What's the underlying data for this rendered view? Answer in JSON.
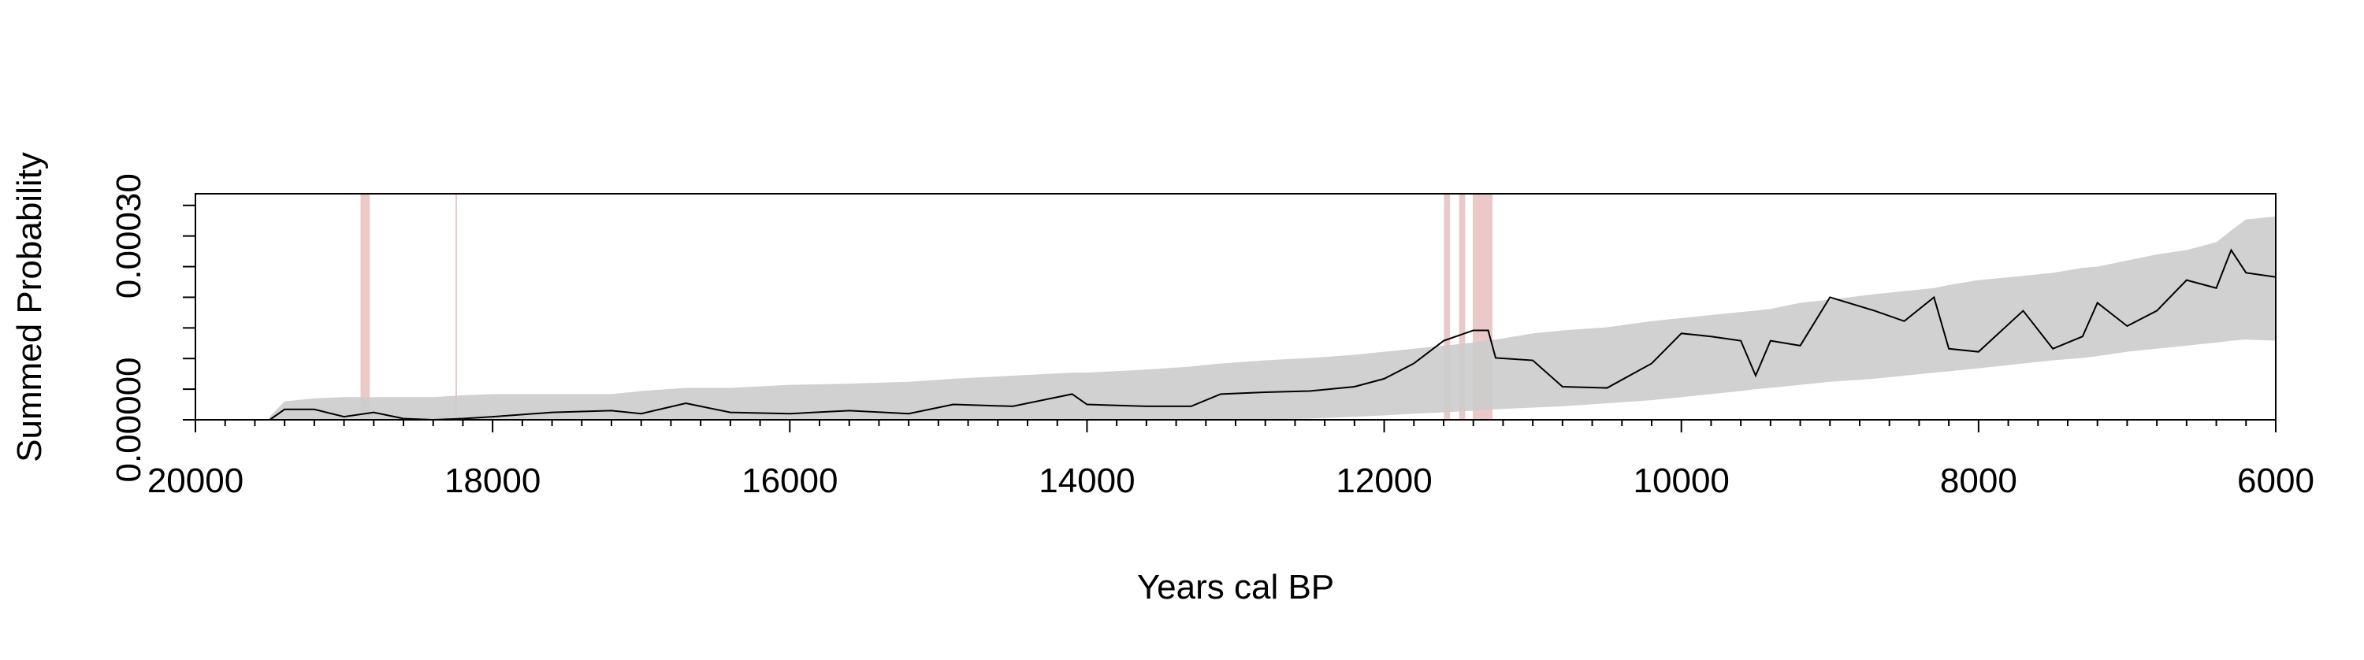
{
  "chart_data": {
    "type": "envelope-line",
    "x_label": "Years cal BP",
    "y_label": "Summed Probability",
    "xlim": [
      20000,
      6000
    ],
    "xticks": [
      20000,
      18000,
      16000,
      14000,
      12000,
      10000,
      8000,
      6000
    ],
    "xminor_ticks": [
      19800,
      19600,
      19400,
      19200,
      19000,
      18800,
      18600,
      18400,
      18200,
      17800,
      17600,
      17400,
      17200,
      17000,
      16800,
      16600,
      16400,
      16200,
      15800,
      15600,
      15400,
      15200,
      15000,
      14800,
      14600,
      14400,
      14200,
      13800,
      13600,
      13400,
      13200,
      13000,
      12800,
      12600,
      12400,
      12200,
      11800,
      11600,
      11400,
      11200,
      11000,
      10800,
      10600,
      10400,
      10200,
      9800,
      9600,
      9400,
      9200,
      9000,
      8800,
      8600,
      8400,
      8200,
      7800,
      7600,
      7400,
      7200,
      7000,
      6800,
      6600,
      6400,
      6200
    ],
    "ylim": [
      0,
      0.000369
    ],
    "yticks": [
      {
        "value": 0,
        "label": "0.00000"
      },
      {
        "value": 0.0003,
        "label": "0.00030"
      }
    ],
    "yminor_ticks": [
      5e-05,
      0.0001,
      0.00015,
      0.0002,
      0.00025,
      0.00035
    ],
    "x": [
      19500,
      19400,
      19200,
      19000,
      18800,
      18600,
      18400,
      18200,
      18000,
      17600,
      17200,
      17000,
      16700,
      16400,
      16000,
      15600,
      15200,
      14900,
      14500,
      14100,
      14000,
      13600,
      13300,
      13100,
      12800,
      12500,
      12200,
      12000,
      11800,
      11600,
      11400,
      11300,
      11250,
      11000,
      10800,
      10500,
      10200,
      10000,
      9800,
      9600,
      9500,
      9400,
      9200,
      9000,
      8700,
      8500,
      8300,
      8200,
      8000,
      7700,
      7500,
      7300,
      7200,
      7000,
      6800,
      6600,
      6400,
      6300,
      6200,
      6000
    ],
    "values": [
      0,
      1.7e-05,
      1.7e-05,
      5e-06,
      1.2e-05,
      2e-06,
      0,
      2e-06,
      5e-06,
      1.2e-05,
      1.5e-05,
      1e-05,
      2.7e-05,
      1.2e-05,
      1e-05,
      1.5e-05,
      1e-05,
      2.5e-05,
      2.2e-05,
      4.2e-05,
      2.5e-05,
      2.2e-05,
      2.2e-05,
      4.2e-05,
      4.5e-05,
      4.7e-05,
      5.4e-05,
      6.7e-05,
      9.2e-05,
      0.000129,
      0.000146,
      0.000146,
      0.000101,
      9.7e-05,
      5.4e-05,
      5.2e-05,
      9.2e-05,
      0.000141,
      0.000136,
      0.000129,
      7.2e-05,
      0.000129,
      0.000121,
      0.0002,
      0.000178,
      0.000161,
      0.0002,
      0.000116,
      0.000111,
      0.000178,
      0.000116,
      0.000136,
      0.000191,
      0.000153,
      0.000178,
      0.000228,
      0.000215,
      0.000277,
      0.00024,
      0.000233
    ],
    "upper": [
      5e-06,
      3e-05,
      3.5e-05,
      3.7e-05,
      3.7e-05,
      3.7e-05,
      3.7e-05,
      4e-05,
      4.2e-05,
      4.2e-05,
      4.2e-05,
      4.7e-05,
      5.2e-05,
      5.2e-05,
      5.7e-05,
      5.9e-05,
      6.2e-05,
      6.7e-05,
      7.2e-05,
      7.7e-05,
      7.7e-05,
      8.2e-05,
      8.7e-05,
      9.2e-05,
      9.7e-05,
      0.000101,
      0.000106,
      0.000111,
      0.000116,
      0.000121,
      0.000126,
      0.000131,
      0.000131,
      0.000141,
      0.000146,
      0.000151,
      0.000161,
      0.000166,
      0.000171,
      0.000176,
      0.000178,
      0.000181,
      0.000191,
      0.000196,
      0.000205,
      0.00021,
      0.000215,
      0.00022,
      0.000228,
      0.000235,
      0.00024,
      0.000248,
      0.00025,
      0.00026,
      0.00027,
      0.000277,
      0.00029,
      0.000309,
      0.000327,
      0.000332
    ],
    "lower": [
      0,
      0,
      0,
      0,
      0,
      0,
      0,
      0,
      0,
      0,
      0,
      0,
      0,
      0,
      0,
      0,
      0,
      0,
      0,
      0,
      0,
      0,
      0,
      0,
      0,
      2e-06,
      5e-06,
      7e-06,
      1e-05,
      1.2e-05,
      1.5e-05,
      1.7e-05,
      1.7e-05,
      2e-05,
      2.2e-05,
      2.7e-05,
      3.2e-05,
      3.7e-05,
      4.2e-05,
      4.7e-05,
      5e-05,
      5.2e-05,
      5.7e-05,
      6.2e-05,
      6.7e-05,
      7.2e-05,
      7.7e-05,
      7.9e-05,
      8.4e-05,
      9.2e-05,
      9.7e-05,
      0.000101,
      0.000104,
      0.000111,
      0.000116,
      0.000121,
      0.000126,
      0.000129,
      0.000131,
      0.000129
    ],
    "line_color": "#000000",
    "envelope_color": "#cccccc",
    "band_color": "#e8c0c0",
    "bands": [
      {
        "start": 18889,
        "end": 18827
      },
      {
        "start": 18250,
        "end": 18240
      },
      {
        "start": 11598,
        "end": 11557
      },
      {
        "start": 11496,
        "end": 11455
      },
      {
        "start": 11404,
        "end": 11271
      }
    ]
  }
}
